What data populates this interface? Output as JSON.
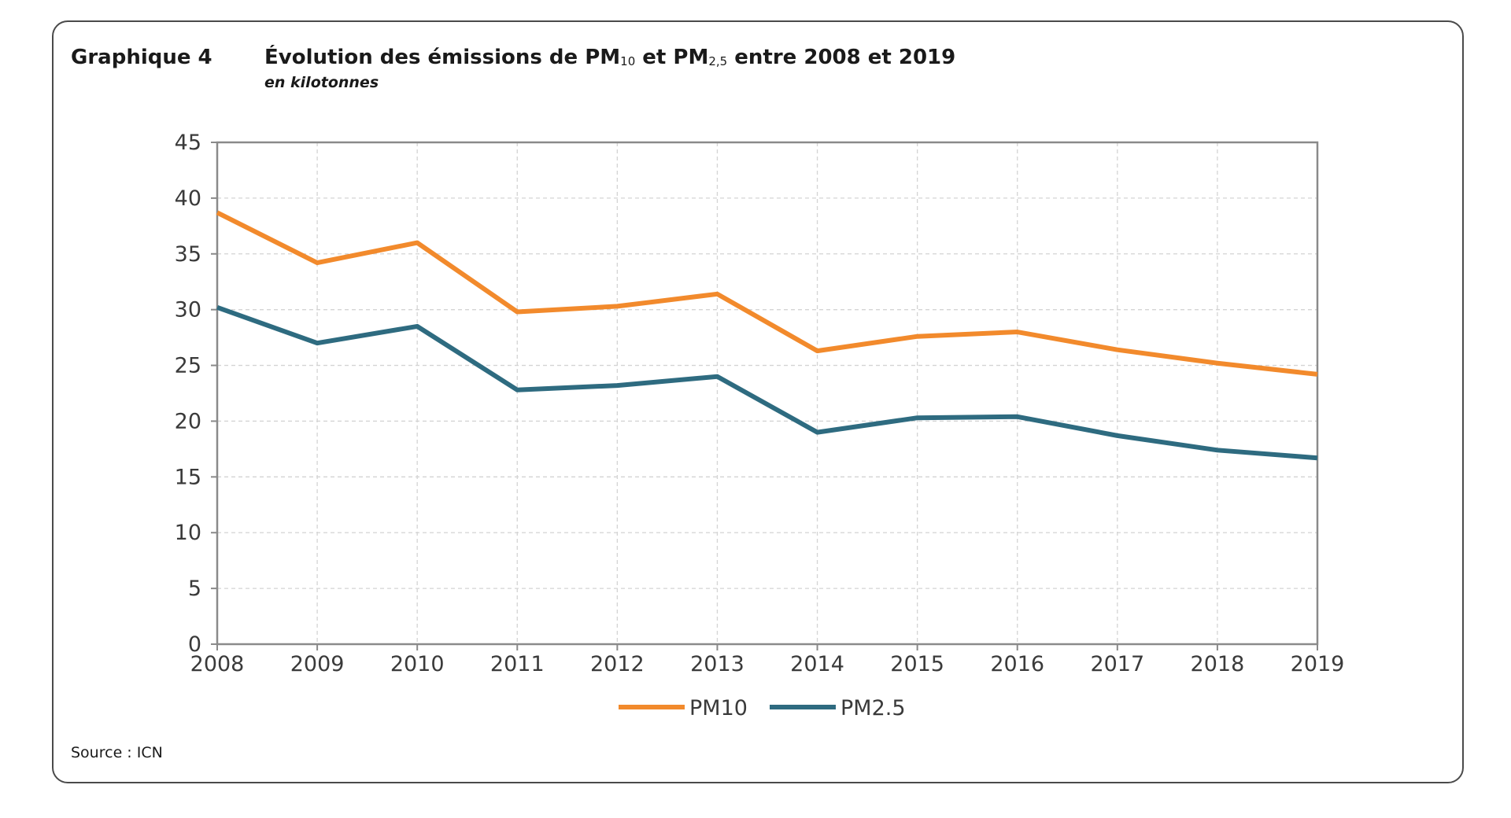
{
  "header": {
    "graph_number": "Graphique 4",
    "title_parts": [
      "Évolution des émissions de PM",
      "10",
      " et PM",
      "2,5",
      " entre 2008 et 2019"
    ],
    "subtitle": "en kilotonnes"
  },
  "footer": {
    "source": "Source : ICN"
  },
  "colors": {
    "pm10": "#f28a2c",
    "pm25": "#2e6b80",
    "grid": "#d4d4d4",
    "axis": "#8a8a8a"
  },
  "chart_data": {
    "type": "line",
    "title": "Évolution des émissions de PM10 et PM2,5 entre 2008 et 2019",
    "subtitle": "en kilotonnes",
    "x": [
      "2008",
      "2009",
      "2010",
      "2011",
      "2012",
      "2013",
      "2014",
      "2015",
      "2016",
      "2017",
      "2018",
      "2019"
    ],
    "ylim": [
      0,
      45
    ],
    "yticks": [
      "0",
      "5",
      "10",
      "15",
      "20",
      "25",
      "30",
      "35",
      "40",
      "45"
    ],
    "grid": true,
    "legend_position": "bottom",
    "series": [
      {
        "name": "PM10",
        "color": "#f28a2c",
        "values": [
          38.7,
          34.2,
          36.0,
          29.8,
          30.3,
          31.4,
          26.3,
          27.6,
          28.0,
          26.4,
          25.2,
          24.2
        ]
      },
      {
        "name": "PM2.5",
        "color": "#2e6b80",
        "values": [
          30.2,
          27.0,
          28.5,
          22.8,
          23.2,
          24.0,
          19.0,
          20.3,
          20.4,
          18.7,
          17.4,
          16.7
        ]
      }
    ]
  }
}
